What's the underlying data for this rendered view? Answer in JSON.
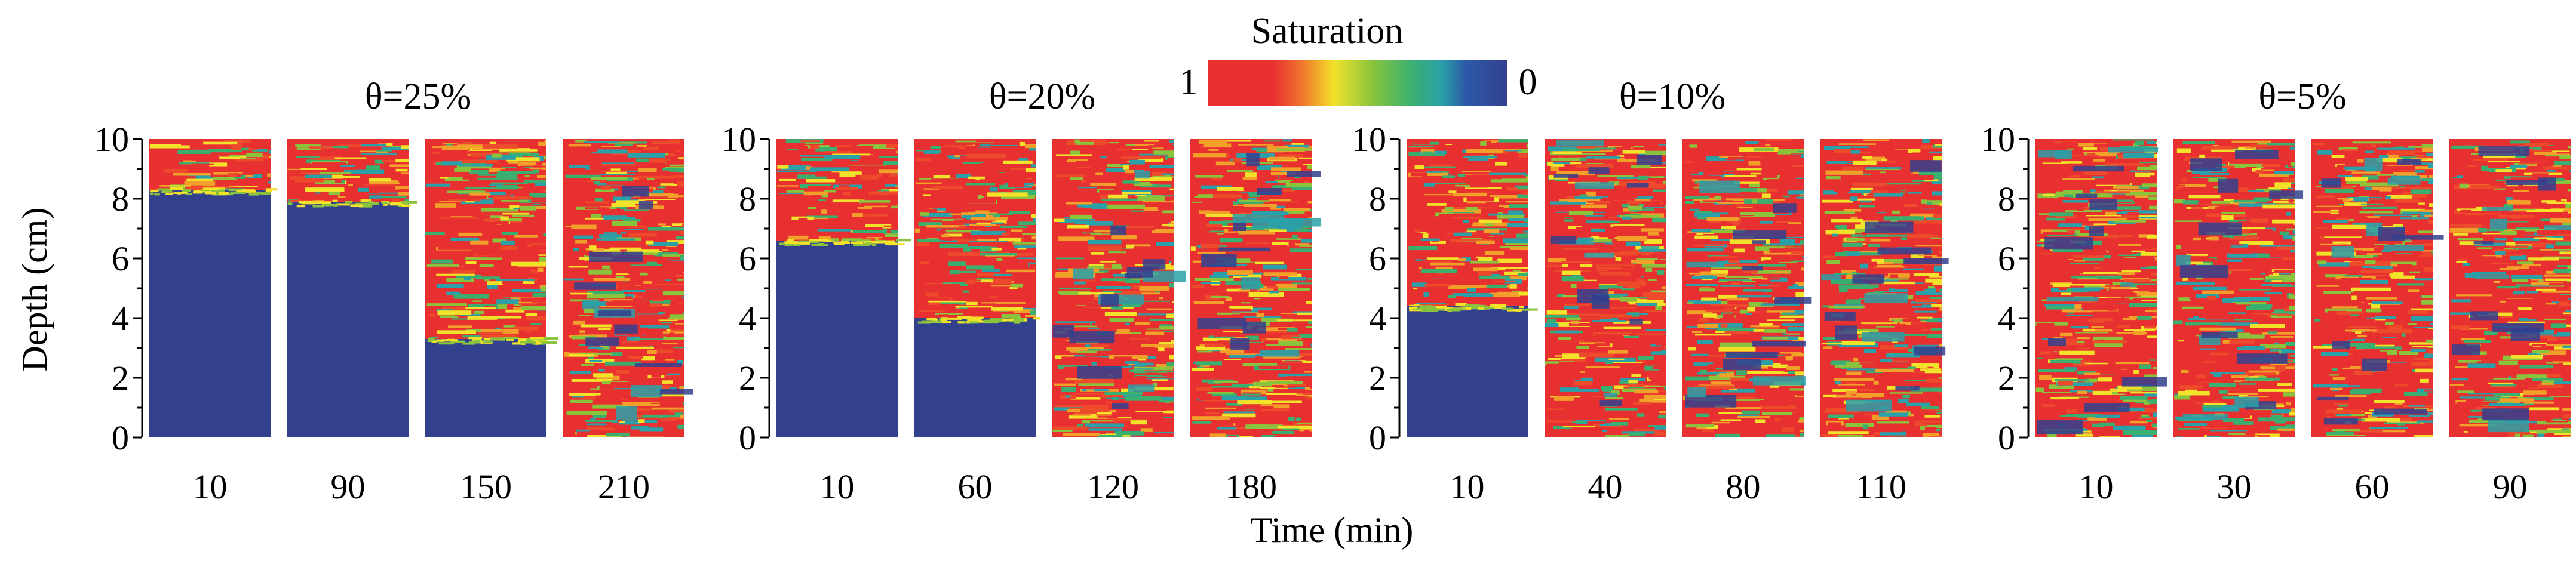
{
  "chart_data": {
    "type": "heatmap",
    "colorbar": {
      "title": "Saturation",
      "min_label": "0",
      "max_label": "1",
      "colors_high_to_low": [
        "#e83030",
        "#f07a2c",
        "#f2e22a",
        "#8ac43c",
        "#3ab070",
        "#2aa0a8",
        "#2c5aa8",
        "#33408e"
      ]
    },
    "xlabel": "Time (min)",
    "ylabel": "Depth (cm)",
    "ylim": [
      0,
      10
    ],
    "yticks": [
      "0",
      "2",
      "4",
      "6",
      "8",
      "10"
    ],
    "groups": [
      {
        "title": "θ=25%",
        "panels": [
          {
            "time": "10",
            "wet_from_depth": 8.3
          },
          {
            "time": "90",
            "wet_from_depth": 7.9
          },
          {
            "time": "150",
            "wet_from_depth": 3.3
          },
          {
            "time": "210",
            "wet_from_depth": 0.0
          }
        ]
      },
      {
        "title": "θ=20%",
        "panels": [
          {
            "time": "10",
            "wet_from_depth": 6.6
          },
          {
            "time": "60",
            "wet_from_depth": 4.0
          },
          {
            "time": "120",
            "wet_from_depth": 0.0
          },
          {
            "time": "180",
            "wet_from_depth": 0.0
          }
        ]
      },
      {
        "title": "θ=10%",
        "panels": [
          {
            "time": "10",
            "wet_from_depth": 4.4
          },
          {
            "time": "40",
            "wet_from_depth": 0.0
          },
          {
            "time": "80",
            "wet_from_depth": 0.0
          },
          {
            "time": "110",
            "wet_from_depth": 0.0
          }
        ]
      },
      {
        "title": "θ=5%",
        "panels": [
          {
            "time": "10",
            "wet_from_depth": 0.0
          },
          {
            "time": "30",
            "wet_from_depth": 0.0
          },
          {
            "time": "60",
            "wet_from_depth": 0.0
          },
          {
            "time": "90",
            "wet_from_depth": 0.0
          }
        ]
      }
    ]
  }
}
